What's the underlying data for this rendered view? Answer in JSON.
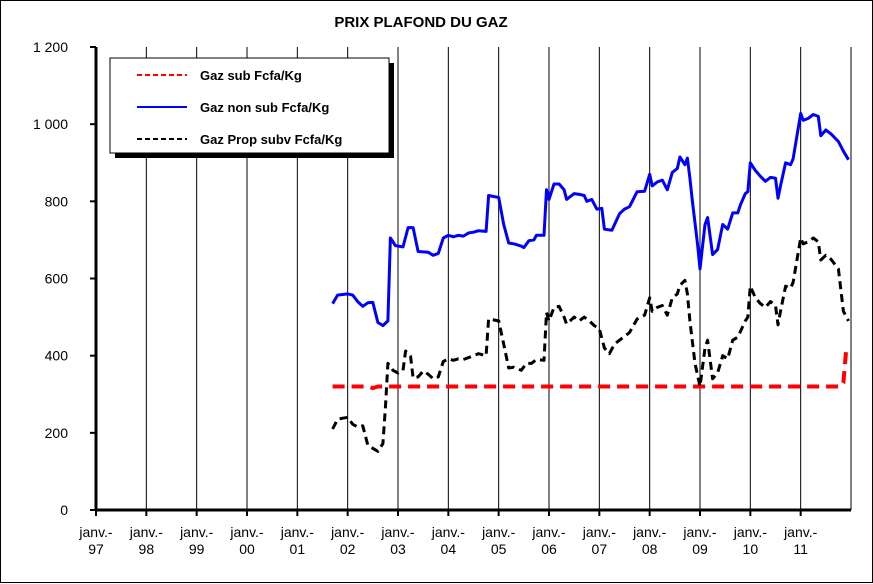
{
  "chart_data": {
    "type": "line",
    "title": "PRIX PLAFOND DU GAZ",
    "xlabel": "",
    "ylabel": "",
    "ylim": [
      0,
      1200
    ],
    "yticks": [
      {
        "value": 0,
        "label": "0"
      },
      {
        "value": 200,
        "label": "200"
      },
      {
        "value": 400,
        "label": "400"
      },
      {
        "value": 600,
        "label": "600"
      },
      {
        "value": 800,
        "label": "800"
      },
      {
        "value": 1000,
        "label": "1 000"
      },
      {
        "value": 1200,
        "label": "1 200"
      }
    ],
    "xlim": [
      1997.0,
      2012.0
    ],
    "xticks": [
      {
        "value": 1997.0,
        "line1": "janv.-",
        "line2": "97"
      },
      {
        "value": 1998.0,
        "line1": "janv.-",
        "line2": "98"
      },
      {
        "value": 1999.0,
        "line1": "janv.-",
        "line2": "99"
      },
      {
        "value": 2000.0,
        "line1": "janv.-",
        "line2": "00"
      },
      {
        "value": 2001.0,
        "line1": "janv.-",
        "line2": "01"
      },
      {
        "value": 2002.0,
        "line1": "janv.-",
        "line2": "02"
      },
      {
        "value": 2003.0,
        "line1": "janv.-",
        "line2": "03"
      },
      {
        "value": 2004.0,
        "line1": "janv.-",
        "line2": "04"
      },
      {
        "value": 2005.0,
        "line1": "janv.-",
        "line2": "05"
      },
      {
        "value": 2006.0,
        "line1": "janv.-",
        "line2": "06"
      },
      {
        "value": 2007.0,
        "line1": "janv.-",
        "line2": "07"
      },
      {
        "value": 2008.0,
        "line1": "janv.-",
        "line2": "08"
      },
      {
        "value": 2009.0,
        "line1": "janv.-",
        "line2": "09"
      },
      {
        "value": 2010.0,
        "line1": "janv.-",
        "line2": "10"
      },
      {
        "value": 2011.0,
        "line1": "janv.-",
        "line2": "11"
      }
    ],
    "grid": "vertical",
    "legend_position": "top-left",
    "series": [
      {
        "name": "Gaz sub Fcfa/Kg",
        "color": "#ff0000",
        "style": "dashed",
        "points": [
          [
            2001.7,
            320
          ],
          [
            2002.4,
            320
          ],
          [
            2002.5,
            316
          ],
          [
            2002.6,
            320
          ],
          [
            2010.0,
            320
          ],
          [
            2011.0,
            320
          ],
          [
            2011.8,
            320
          ],
          [
            2011.85,
            330
          ],
          [
            2011.9,
            410
          ],
          [
            2011.92,
            410
          ]
        ]
      },
      {
        "name": "Gaz non sub Fcfa/Kg",
        "color": "#0000ff",
        "style": "solid",
        "points": [
          [
            2001.7,
            535
          ],
          [
            2001.8,
            557
          ],
          [
            2002.0,
            560
          ],
          [
            2002.1,
            557
          ],
          [
            2002.2,
            540
          ],
          [
            2002.3,
            528
          ],
          [
            2002.4,
            537
          ],
          [
            2002.5,
            538
          ],
          [
            2002.6,
            486
          ],
          [
            2002.7,
            478
          ],
          [
            2002.8,
            490
          ],
          [
            2002.85,
            705
          ],
          [
            2002.95,
            685
          ],
          [
            2003.1,
            682
          ],
          [
            2003.2,
            732
          ],
          [
            2003.3,
            732
          ],
          [
            2003.4,
            670
          ],
          [
            2003.6,
            668
          ],
          [
            2003.7,
            660
          ],
          [
            2003.8,
            665
          ],
          [
            2003.9,
            705
          ],
          [
            2004.0,
            712
          ],
          [
            2004.1,
            708
          ],
          [
            2004.2,
            712
          ],
          [
            2004.3,
            710
          ],
          [
            2004.4,
            718
          ],
          [
            2004.5,
            720
          ],
          [
            2004.6,
            724
          ],
          [
            2004.75,
            722
          ],
          [
            2004.8,
            815
          ],
          [
            2005.0,
            810
          ],
          [
            2005.1,
            740
          ],
          [
            2005.2,
            692
          ],
          [
            2005.3,
            690
          ],
          [
            2005.45,
            684
          ],
          [
            2005.5,
            680
          ],
          [
            2005.6,
            698
          ],
          [
            2005.7,
            700
          ],
          [
            2005.75,
            712
          ],
          [
            2005.8,
            712
          ],
          [
            2005.9,
            712
          ],
          [
            2005.95,
            830
          ],
          [
            2006.0,
            805
          ],
          [
            2006.1,
            845
          ],
          [
            2006.2,
            845
          ],
          [
            2006.3,
            830
          ],
          [
            2006.35,
            805
          ],
          [
            2006.5,
            820
          ],
          [
            2006.6,
            818
          ],
          [
            2006.7,
            815
          ],
          [
            2006.75,
            800
          ],
          [
            2006.85,
            805
          ],
          [
            2006.95,
            780
          ],
          [
            2007.05,
            782
          ],
          [
            2007.1,
            728
          ],
          [
            2007.25,
            725
          ],
          [
            2007.4,
            768
          ],
          [
            2007.5,
            780
          ],
          [
            2007.6,
            786
          ],
          [
            2007.75,
            825
          ],
          [
            2007.9,
            826
          ],
          [
            2008.0,
            870
          ],
          [
            2008.05,
            840
          ],
          [
            2008.15,
            850
          ],
          [
            2008.25,
            855
          ],
          [
            2008.35,
            830
          ],
          [
            2008.45,
            875
          ],
          [
            2008.55,
            885
          ],
          [
            2008.6,
            915
          ],
          [
            2008.7,
            895
          ],
          [
            2008.75,
            912
          ],
          [
            2008.8,
            860
          ],
          [
            2008.85,
            800
          ],
          [
            2008.95,
            690
          ],
          [
            2009.0,
            625
          ],
          [
            2009.1,
            740
          ],
          [
            2009.15,
            758
          ],
          [
            2009.25,
            662
          ],
          [
            2009.35,
            675
          ],
          [
            2009.45,
            740
          ],
          [
            2009.55,
            728
          ],
          [
            2009.65,
            770
          ],
          [
            2009.75,
            770
          ],
          [
            2009.8,
            790
          ],
          [
            2009.9,
            820
          ],
          [
            2009.95,
            825
          ],
          [
            2010.0,
            900
          ],
          [
            2010.1,
            880
          ],
          [
            2010.2,
            865
          ],
          [
            2010.3,
            852
          ],
          [
            2010.4,
            862
          ],
          [
            2010.5,
            860
          ],
          [
            2010.55,
            808
          ],
          [
            2010.6,
            840
          ],
          [
            2010.7,
            900
          ],
          [
            2010.8,
            895
          ],
          [
            2010.85,
            910
          ],
          [
            2011.0,
            1028
          ],
          [
            2011.05,
            1010
          ],
          [
            2011.15,
            1015
          ],
          [
            2011.25,
            1025
          ],
          [
            2011.35,
            1020
          ],
          [
            2011.4,
            970
          ],
          [
            2011.5,
            985
          ],
          [
            2011.6,
            975
          ],
          [
            2011.75,
            955
          ],
          [
            2011.85,
            930
          ],
          [
            2011.95,
            908
          ]
        ]
      },
      {
        "name": "Gaz Prop subv Fcfa/Kg",
        "color": "#000000",
        "style": "dashed",
        "points": [
          [
            2001.7,
            210
          ],
          [
            2001.8,
            235
          ],
          [
            2001.9,
            238
          ],
          [
            2002.0,
            240
          ],
          [
            2002.1,
            222
          ],
          [
            2002.2,
            215
          ],
          [
            2002.3,
            218
          ],
          [
            2002.4,
            168
          ],
          [
            2002.5,
            160
          ],
          [
            2002.6,
            152
          ],
          [
            2002.7,
            172
          ],
          [
            2002.75,
            265
          ],
          [
            2002.8,
            380
          ],
          [
            2002.9,
            362
          ],
          [
            2003.0,
            355
          ],
          [
            2003.1,
            362
          ],
          [
            2003.15,
            412
          ],
          [
            2003.25,
            398
          ],
          [
            2003.3,
            342
          ],
          [
            2003.4,
            345
          ],
          [
            2003.5,
            360
          ],
          [
            2003.6,
            352
          ],
          [
            2003.7,
            340
          ],
          [
            2003.8,
            345
          ],
          [
            2003.9,
            385
          ],
          [
            2004.0,
            392
          ],
          [
            2004.1,
            388
          ],
          [
            2004.2,
            392
          ],
          [
            2004.3,
            390
          ],
          [
            2004.4,
            395
          ],
          [
            2004.5,
            400
          ],
          [
            2004.6,
            405
          ],
          [
            2004.75,
            400
          ],
          [
            2004.8,
            495
          ],
          [
            2005.0,
            490
          ],
          [
            2005.1,
            430
          ],
          [
            2005.2,
            368
          ],
          [
            2005.3,
            370
          ],
          [
            2005.45,
            362
          ],
          [
            2005.55,
            380
          ],
          [
            2005.65,
            380
          ],
          [
            2005.75,
            390
          ],
          [
            2005.9,
            388
          ],
          [
            2005.95,
            512
          ],
          [
            2006.0,
            490
          ],
          [
            2006.1,
            525
          ],
          [
            2006.2,
            528
          ],
          [
            2006.3,
            500
          ],
          [
            2006.35,
            482
          ],
          [
            2006.5,
            500
          ],
          [
            2006.6,
            490
          ],
          [
            2006.7,
            500
          ],
          [
            2006.8,
            490
          ],
          [
            2006.9,
            478
          ],
          [
            2007.0,
            470
          ],
          [
            2007.1,
            420
          ],
          [
            2007.2,
            405
          ],
          [
            2007.3,
            430
          ],
          [
            2007.5,
            450
          ],
          [
            2007.6,
            460
          ],
          [
            2007.75,
            495
          ],
          [
            2007.9,
            505
          ],
          [
            2008.0,
            550
          ],
          [
            2008.05,
            515
          ],
          [
            2008.15,
            525
          ],
          [
            2008.25,
            530
          ],
          [
            2008.35,
            505
          ],
          [
            2008.45,
            550
          ],
          [
            2008.55,
            560
          ],
          [
            2008.6,
            582
          ],
          [
            2008.7,
            595
          ],
          [
            2008.75,
            560
          ],
          [
            2008.8,
            490
          ],
          [
            2008.9,
            380
          ],
          [
            2009.0,
            320
          ],
          [
            2009.1,
            420
          ],
          [
            2009.15,
            440
          ],
          [
            2009.25,
            340
          ],
          [
            2009.35,
            355
          ],
          [
            2009.45,
            400
          ],
          [
            2009.55,
            392
          ],
          [
            2009.65,
            440
          ],
          [
            2009.75,
            448
          ],
          [
            2009.8,
            462
          ],
          [
            2009.9,
            490
          ],
          [
            2009.95,
            500
          ],
          [
            2010.0,
            580
          ],
          [
            2010.1,
            550
          ],
          [
            2010.2,
            535
          ],
          [
            2010.3,
            525
          ],
          [
            2010.4,
            540
          ],
          [
            2010.5,
            530
          ],
          [
            2010.55,
            480
          ],
          [
            2010.6,
            515
          ],
          [
            2010.7,
            580
          ],
          [
            2010.8,
            575
          ],
          [
            2010.85,
            590
          ],
          [
            2011.0,
            705
          ],
          [
            2011.05,
            690
          ],
          [
            2011.15,
            695
          ],
          [
            2011.25,
            705
          ],
          [
            2011.35,
            695
          ],
          [
            2011.4,
            648
          ],
          [
            2011.5,
            660
          ],
          [
            2011.6,
            650
          ],
          [
            2011.75,
            625
          ],
          [
            2011.85,
            515
          ],
          [
            2011.95,
            490
          ]
        ]
      }
    ]
  }
}
